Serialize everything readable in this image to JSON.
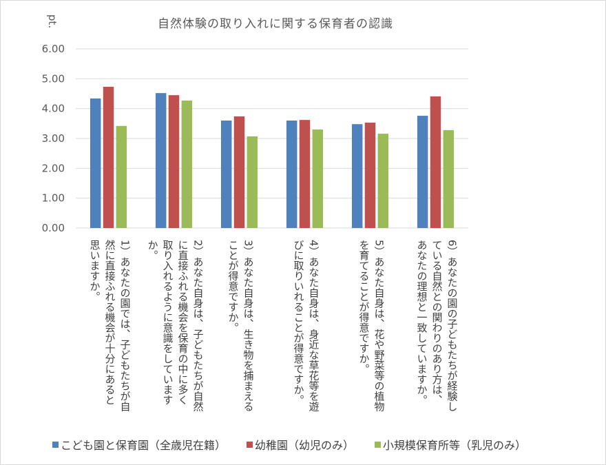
{
  "chart_data": {
    "type": "bar",
    "title": "自然体験の取り入れに関する保育者の認識",
    "ylabel": "pt.",
    "ylim": [
      0,
      6
    ],
    "yticks": [
      "0.00",
      "1.00",
      "2.00",
      "3.00",
      "4.00",
      "5.00",
      "6.00"
    ],
    "grid": true,
    "legend_position": "bottom",
    "categories": [
      [
        "1）あなたの園では、子どもたちが自",
        "然に直接ふれる機会が十分にあると",
        "思いますか。"
      ],
      [
        "2）あなた自身は、子どもたちが自然",
        "に直接ふれる機会を保育の中に多く",
        "取り入れるように意識をしています",
        "か。"
      ],
      [
        "3）あなた自身は、生き物を捕まえる",
        "ことが得意ですか。"
      ],
      [
        "4）あなた自身は、身近な草花等を遊",
        "びに取りいれることが得意ですか。"
      ],
      [
        "5）あなた自身は、花や野菜等の植物",
        "を育てることが得意ですか。"
      ],
      [
        "6）あなたの園の子どもたちが経験し",
        "ている自然との関わりのあり方は、",
        "あなたの理想と一致していますか。"
      ]
    ],
    "series": [
      {
        "name": "こども園と保育園（全歳児在籍）",
        "color": "#4f81bd",
        "values": [
          4.34,
          4.52,
          3.6,
          3.6,
          3.48,
          3.76
        ]
      },
      {
        "name": "幼稚園（幼児のみ）",
        "color": "#c0504d",
        "values": [
          4.73,
          4.45,
          3.74,
          3.62,
          3.53,
          4.41
        ]
      },
      {
        "name": "小規模保育所等（乳児のみ）",
        "color": "#9bbb59",
        "values": [
          3.42,
          4.27,
          3.07,
          3.3,
          3.16,
          3.28
        ]
      }
    ]
  }
}
